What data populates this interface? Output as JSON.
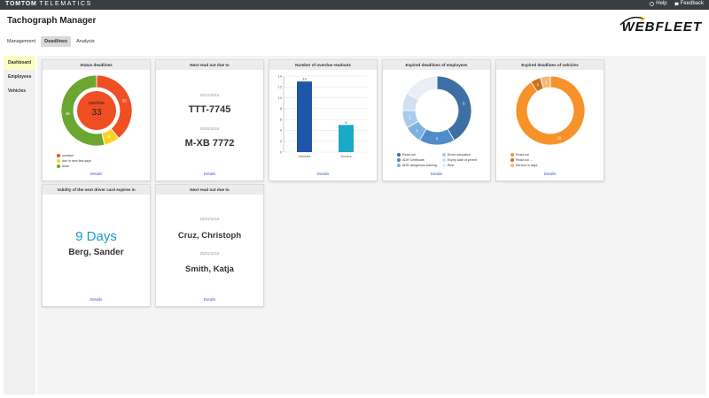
{
  "topbar": {
    "brand": "TOMTOM",
    "brand_sub": "TELEMATICS",
    "help_label": "Help",
    "feedback_label": "Feedback"
  },
  "app": {
    "title": "Tachograph Manager",
    "logo_text": "WEBFLEET"
  },
  "tabs": [
    {
      "label": "Management",
      "active": false
    },
    {
      "label": "Deadlines",
      "active": true
    },
    {
      "label": "Analysis",
      "active": false
    }
  ],
  "sidebar": {
    "items": [
      {
        "label": "Dashboard",
        "active": true
      },
      {
        "label": "Employees",
        "active": false
      },
      {
        "label": "Vehicles",
        "active": false
      }
    ]
  },
  "details_label": "Details",
  "status_card": {
    "title": "Status deadlines",
    "center_label": "overdue",
    "center_value": "33",
    "legend": [
      "overdue",
      "due in next few days",
      "done"
    ],
    "colors": [
      "#f04e23",
      "#f5d327",
      "#6aa630"
    ]
  },
  "next_readout_card": {
    "title": "Next read out due to",
    "items": [
      {
        "date": "20/11/2015",
        "plate": "TTT-7745"
      },
      {
        "date": "20/09/2016",
        "plate": "M-XB 7772"
      }
    ]
  },
  "overdue_card": {
    "title": "Number of overdue readouts"
  },
  "employees_card": {
    "title": "Expired deadlines of employees",
    "legend": [
      "Read out",
      "ADR Certificate",
      "ADR-dangerous-training",
      "Driver education",
      "Expiry date of permit",
      "Rest"
    ]
  },
  "vehicles_card": {
    "title": "Expired deadlines of vehicles",
    "legend": [
      "Read out",
      "Read out ...",
      "Service in days"
    ]
  },
  "driver_card": {
    "title": "Validity of the next driver card expires in",
    "days": "9 Days",
    "name": "Berg, Sander"
  },
  "next_readout_card2": {
    "title": "Next read out due to",
    "items": [
      {
        "date": "26/01/2016",
        "name": "Cruz, Christoph"
      },
      {
        "date": "25/01/2016",
        "name": "Smith, Katja"
      }
    ]
  },
  "chart_data": [
    {
      "type": "pie",
      "title": "Status deadlines",
      "categories": [
        "overdue",
        "due in next few days",
        "done"
      ],
      "values": [
        33,
        6,
        45
      ],
      "labels_shown": [
        "33",
        "6",
        "45"
      ],
      "colors": [
        "#f04e23",
        "#f5d327",
        "#6aa630"
      ]
    },
    {
      "type": "bar",
      "title": "Number of overdue readouts",
      "categories": [
        "Vehicles",
        "Drivers"
      ],
      "values": [
        13,
        5
      ],
      "ylim": [
        0,
        14
      ],
      "yticks": [
        0,
        2,
        4,
        6,
        8,
        10,
        12,
        14
      ],
      "colors": [
        "#1f56a8",
        "#1aa9c7"
      ],
      "grid": true
    },
    {
      "type": "pie",
      "title": "Expired deadlines of employees",
      "categories": [
        "Read out",
        "ADR Certificate",
        "ADR-dangerous-training",
        "Driver education",
        "Expiry date of permit",
        "Rest"
      ],
      "values": [
        5,
        2,
        1,
        1,
        1,
        2
      ],
      "colors": [
        "#3e6fa3",
        "#4f8cc9",
        "#7db1df",
        "#a8cbe9",
        "#cfe0f3",
        "#e8edf6"
      ]
    },
    {
      "type": "pie",
      "title": "Expired deadlines of vehicles",
      "categories": [
        "Read out",
        "Read out ...",
        "Service in days"
      ],
      "values": [
        19,
        1,
        1
      ],
      "colors": [
        "#f7922a",
        "#c9731c",
        "#f5b873"
      ]
    }
  ]
}
